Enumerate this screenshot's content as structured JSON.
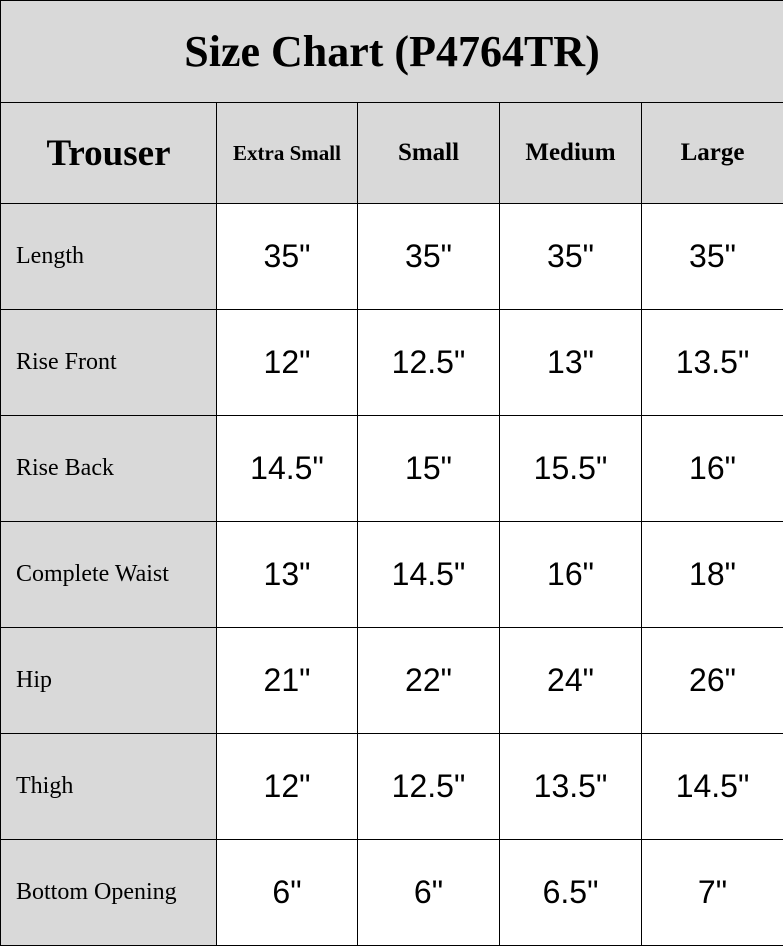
{
  "title": "Size Chart (P4764TR)",
  "header": {
    "corner": "Trouser",
    "sizes": [
      "Extra Small",
      "Small",
      "Medium",
      "Large"
    ]
  },
  "rows": [
    {
      "label": "Length",
      "values": [
        "35\"",
        "35\"",
        "35\"",
        "35\""
      ]
    },
    {
      "label": "Rise Front",
      "values": [
        "12\"",
        "12.5\"",
        "13\"",
        "13.5\""
      ]
    },
    {
      "label": "Rise Back",
      "values": [
        "14.5\"",
        "15\"",
        "15.5\"",
        "16\""
      ]
    },
    {
      "label": "Complete Waist",
      "values": [
        "13\"",
        "14.5\"",
        "16\"",
        "18\""
      ]
    },
    {
      "label": "Hip",
      "values": [
        "21\"",
        "22\"",
        "24\"",
        "26\""
      ]
    },
    {
      "label": "Thigh",
      "values": [
        "12\"",
        "12.5\"",
        "13.5\"",
        "14.5\""
      ]
    },
    {
      "label": "Bottom Opening",
      "values": [
        "6\"",
        "6\"",
        "6.5\"",
        "7\""
      ]
    }
  ],
  "colors": {
    "header_bg": "#d9d9d9",
    "cell_bg": "#ffffff",
    "border": "#000000"
  }
}
